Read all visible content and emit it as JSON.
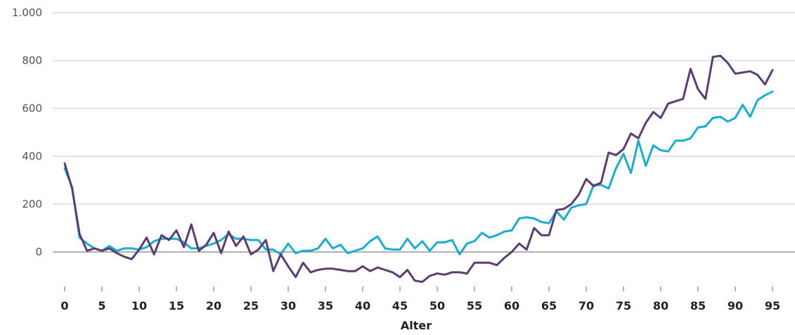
{
  "chart_data": {
    "type": "line",
    "xlabel": "Alter",
    "ylabel": "",
    "xlim": [
      0,
      95
    ],
    "ylim": [
      -100,
      1000
    ],
    "yticks": [
      0,
      200,
      400,
      600,
      800,
      1000
    ],
    "ytick_labels": [
      "0",
      "200",
      "400",
      "600",
      "800",
      "1.000"
    ],
    "xticks": [
      0,
      5,
      10,
      15,
      20,
      25,
      30,
      35,
      40,
      45,
      50,
      55,
      60,
      65,
      70,
      75,
      80,
      85,
      90,
      95
    ],
    "xtick_labels": [
      "0",
      "5",
      "10",
      "15",
      "20",
      "25",
      "30",
      "35",
      "40",
      "45",
      "50",
      "55",
      "60",
      "65",
      "70",
      "75",
      "80",
      "85",
      "90",
      "95"
    ],
    "grid": true,
    "legend": "none",
    "x": [
      0,
      1,
      2,
      3,
      4,
      5,
      6,
      7,
      8,
      9,
      10,
      11,
      12,
      13,
      14,
      15,
      16,
      17,
      18,
      19,
      20,
      21,
      22,
      23,
      24,
      25,
      26,
      27,
      28,
      29,
      30,
      31,
      32,
      33,
      34,
      35,
      36,
      37,
      38,
      39,
      40,
      41,
      42,
      43,
      44,
      45,
      46,
      47,
      48,
      49,
      50,
      51,
      52,
      53,
      54,
      55,
      56,
      57,
      58,
      59,
      60,
      61,
      62,
      63,
      64,
      65,
      66,
      67,
      68,
      69,
      70,
      71,
      72,
      73,
      74,
      75,
      76,
      77,
      78,
      79,
      80,
      81,
      82,
      83,
      84,
      85,
      86,
      87,
      88,
      89,
      90,
      91,
      92,
      93,
      94,
      95
    ],
    "series": [
      {
        "color": "#1aaecc",
        "values": [
          350,
          270,
          60,
          35,
          15,
          5,
          25,
          5,
          15,
          15,
          10,
          20,
          45,
          55,
          55,
          55,
          40,
          15,
          15,
          25,
          35,
          50,
          75,
          55,
          55,
          50,
          50,
          10,
          10,
          -10,
          35,
          -5,
          5,
          5,
          15,
          55,
          15,
          30,
          -5,
          5,
          15,
          45,
          65,
          15,
          10,
          10,
          55,
          15,
          45,
          5,
          40,
          40,
          50,
          -10,
          35,
          45,
          80,
          60,
          70,
          85,
          90,
          140,
          145,
          140,
          125,
          120,
          170,
          135,
          185,
          195,
          200,
          280,
          280,
          265,
          350,
          410,
          330,
          465,
          360,
          445,
          425,
          420,
          465,
          465,
          475,
          520,
          525,
          560,
          565,
          545,
          560,
          615,
          565,
          635,
          655,
          670
        ]
      },
      {
        "color": "#5a3e73",
        "values": [
          370,
          265,
          75,
          5,
          15,
          5,
          15,
          -5,
          -20,
          -30,
          10,
          60,
          -10,
          70,
          50,
          90,
          20,
          115,
          5,
          30,
          80,
          -5,
          85,
          25,
          65,
          -10,
          10,
          50,
          -80,
          -10,
          -60,
          -105,
          -45,
          -85,
          -75,
          -70,
          -70,
          -75,
          -80,
          -80,
          -60,
          -80,
          -65,
          -75,
          -85,
          -105,
          -75,
          -120,
          -125,
          -100,
          -90,
          -95,
          -85,
          -85,
          -90,
          -45,
          -45,
          -45,
          -55,
          -25,
          0,
          35,
          10,
          100,
          70,
          70,
          175,
          180,
          200,
          240,
          305,
          275,
          290,
          415,
          405,
          430,
          495,
          475,
          540,
          585,
          560,
          620,
          630,
          640,
          765,
          680,
          640,
          815,
          820,
          790,
          745,
          750,
          755,
          740,
          700,
          760
        ]
      }
    ]
  }
}
